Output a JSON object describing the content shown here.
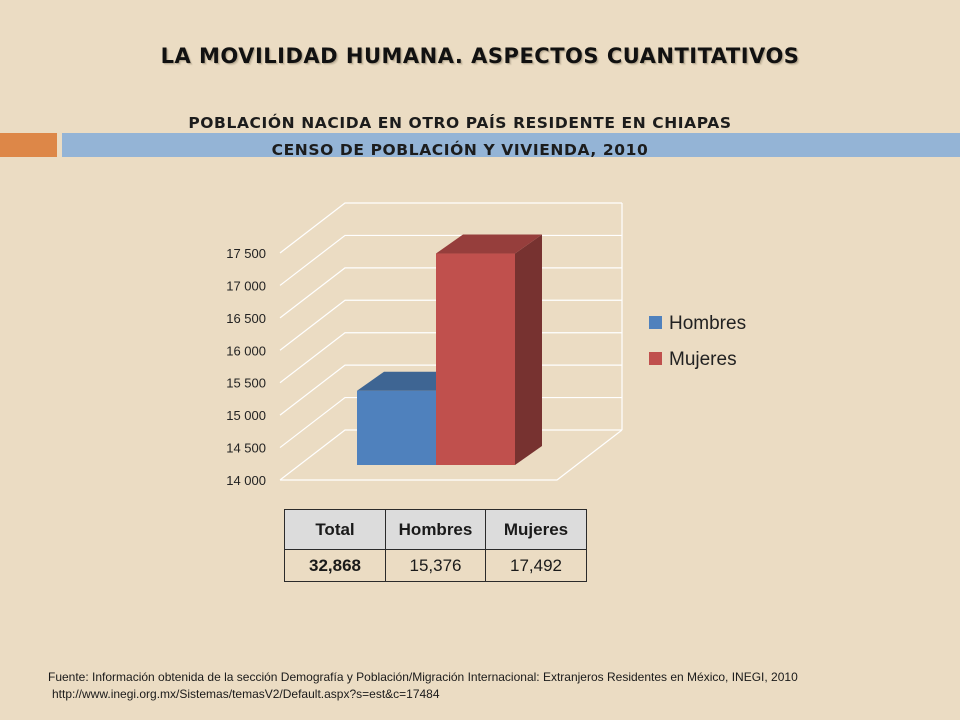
{
  "slide": {
    "title": "LA MOVILIDAD HUMANA. ASPECTOS CUANTITATIVOS",
    "subtitle_line1": "POBLACIÓN NACIDA EN OTRO PAÍS RESIDENTE EN CHIAPAS",
    "subtitle_line2": "CENSO DE POBLACIÓN Y VIVIENDA, 2010",
    "accent_colors": {
      "orange": "#dd8748",
      "blue": "#94b4d6",
      "background": "#ebdcc3"
    }
  },
  "chart_data": {
    "type": "bar",
    "three_d": true,
    "categories": [
      ""
    ],
    "series": [
      {
        "name": "Hombres",
        "values": [
          15376
        ],
        "color": "#4f81bd"
      },
      {
        "name": "Mujeres",
        "values": [
          17492
        ],
        "color": "#c0504d"
      }
    ],
    "ylim": [
      14000,
      17500
    ],
    "yticks": [
      "14 000",
      "14 500",
      "15 000",
      "15 500",
      "16 000",
      "16 500",
      "17 000",
      "17 500"
    ],
    "ytick_values": [
      14000,
      14500,
      15000,
      15500,
      16000,
      16500,
      17000,
      17500
    ],
    "grid": true,
    "legend": "right"
  },
  "table": {
    "headers": [
      "Total",
      "Hombres",
      "Mujeres"
    ],
    "rows": [
      [
        "32,868",
        "15,376",
        "17,492"
      ]
    ]
  },
  "footer": {
    "source": "Fuente: Información obtenida de la sección Demografía y Población/Migración Internacional: Extranjeros Residentes en México, INEGI, 2010",
    "url": "http://www.inegi.org.mx/Sistemas/temasV2/Default.aspx?s=est&c=17484"
  }
}
